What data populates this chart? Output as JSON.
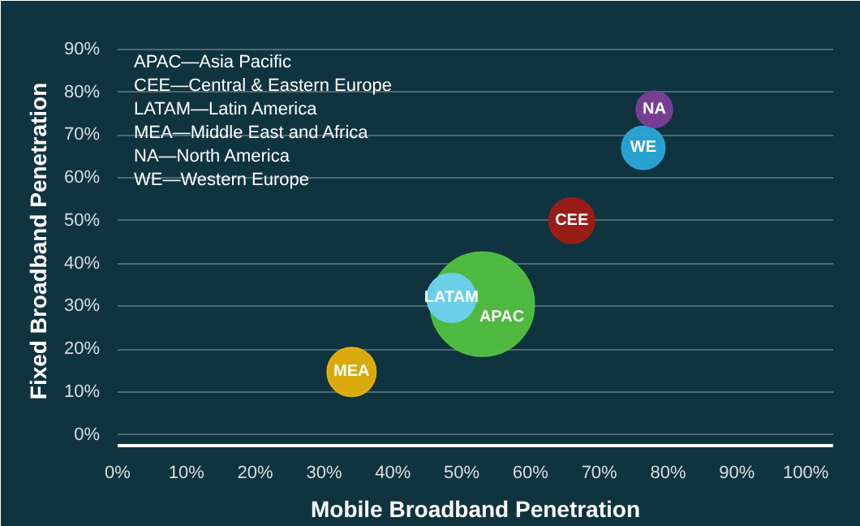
{
  "chart_data": {
    "type": "bubble",
    "xlabel": "Mobile Broadband Penetration",
    "ylabel": "Fixed Broadband Penetration",
    "xlim": [
      0,
      104
    ],
    "ylim": [
      -2.5,
      93
    ],
    "xticks": [
      {
        "value": 0,
        "label": "0%"
      },
      {
        "value": 10,
        "label": "10%"
      },
      {
        "value": 20,
        "label": "20%"
      },
      {
        "value": 30,
        "label": "30%"
      },
      {
        "value": 40,
        "label": "40%"
      },
      {
        "value": 50,
        "label": "50%"
      },
      {
        "value": 60,
        "label": "60%"
      },
      {
        "value": 70,
        "label": "70%"
      },
      {
        "value": 80,
        "label": "80%"
      },
      {
        "value": 90,
        "label": "90%"
      },
      {
        "value": 100,
        "label": "100%"
      }
    ],
    "yticks": [
      {
        "value": 0,
        "label": "0%"
      },
      {
        "value": 10,
        "label": "10%"
      },
      {
        "value": 20,
        "label": "20%"
      },
      {
        "value": 30,
        "label": "30%"
      },
      {
        "value": 40,
        "label": "40%"
      },
      {
        "value": 50,
        "label": "50%"
      },
      {
        "value": 60,
        "label": "60%"
      },
      {
        "value": 70,
        "label": "70%"
      },
      {
        "value": 80,
        "label": "80%"
      },
      {
        "value": 90,
        "label": "90%"
      }
    ],
    "grid": "y",
    "annotations": [
      "APAC—Asia Pacific",
      "CEE—Central & Eastern Europe",
      "LATAM—Latin America",
      "MEA—Middle East and Africa",
      "NA—North America",
      "WE—Western Europe"
    ],
    "series": [
      {
        "name": "APAC",
        "color": "#52c040",
        "x": [
          53
        ],
        "values": [
          30.5
        ],
        "sizes": [
          1
        ]
      },
      {
        "name": "LATAM",
        "color": "#6dd0f0",
        "x": [
          48.5
        ],
        "values": [
          32
        ],
        "sizes": [
          0.22
        ]
      },
      {
        "name": "MEA",
        "color": "#e5b00a",
        "x": [
          34
        ],
        "values": [
          14.7
        ],
        "sizes": [
          0.22
        ]
      },
      {
        "name": "CEE",
        "color": "#a01c14",
        "x": [
          66
        ],
        "values": [
          50
        ],
        "sizes": [
          0.19
        ]
      },
      {
        "name": "WE",
        "color": "#2aa8d8",
        "x": [
          76.4
        ],
        "values": [
          67
        ],
        "sizes": [
          0.17
        ]
      },
      {
        "name": "NA",
        "color": "#7b3f98",
        "x": [
          78
        ],
        "values": [
          76
        ],
        "sizes": [
          0.12
        ]
      }
    ]
  }
}
